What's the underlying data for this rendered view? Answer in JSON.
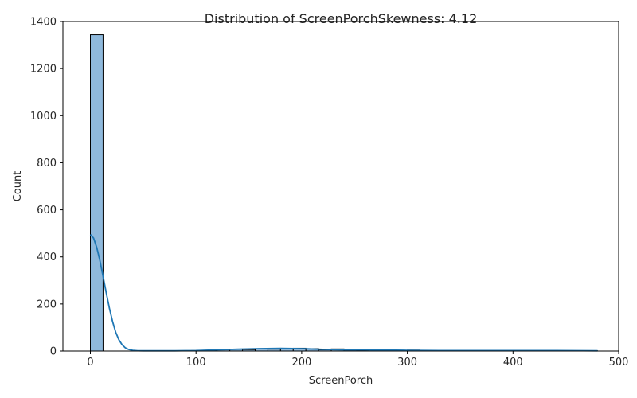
{
  "chart_data": {
    "type": "bar",
    "title": "Distribution of ScreenPorchSkewness: 4.12",
    "xlabel": "ScreenPorch",
    "ylabel": "Count",
    "xlim": [
      -26,
      500
    ],
    "ylim": [
      0,
      1400
    ],
    "xticks": [
      0,
      100,
      200,
      300,
      400,
      500
    ],
    "yticks": [
      0,
      200,
      400,
      600,
      800,
      1000,
      1200,
      1400
    ],
    "bin_edges": [
      0,
      12,
      24,
      36,
      48,
      60,
      72,
      84,
      96,
      108,
      120,
      132,
      144,
      156,
      168,
      180,
      192,
      204,
      216,
      228,
      240,
      252,
      264,
      276,
      288,
      300,
      312,
      324,
      336,
      348,
      360,
      372,
      384,
      396,
      408,
      420,
      432,
      444,
      456,
      468,
      480
    ],
    "counts": [
      1344,
      0,
      0,
      0,
      0,
      0,
      0,
      1,
      2,
      3,
      6,
      8,
      6,
      9,
      8,
      10,
      12,
      10,
      5,
      9,
      4,
      3,
      6,
      4,
      3,
      4,
      2,
      2,
      1,
      1,
      1,
      1,
      1,
      2,
      1,
      1,
      1,
      1,
      1,
      1
    ],
    "kde": {
      "x": [
        0,
        3,
        6,
        9,
        12,
        15,
        18,
        21,
        24,
        27,
        30,
        33,
        36,
        40,
        45,
        50,
        60,
        80,
        100,
        120,
        140,
        160,
        180,
        200,
        220,
        240,
        260,
        280,
        300,
        330,
        360,
        400,
        440,
        480
      ],
      "y": [
        495,
        480,
        440,
        385,
        318,
        248,
        182,
        125,
        80,
        48,
        27,
        14,
        7,
        3,
        1.5,
        1,
        1,
        1,
        2,
        5,
        8,
        10,
        11,
        10,
        7,
        5,
        5,
        4,
        3,
        2,
        2,
        2,
        2,
        1
      ]
    },
    "colors": {
      "bar_fill": "#8fb9dc",
      "bar_edge": "#000000",
      "kde_line": "#1f77b4"
    },
    "grid": false
  }
}
